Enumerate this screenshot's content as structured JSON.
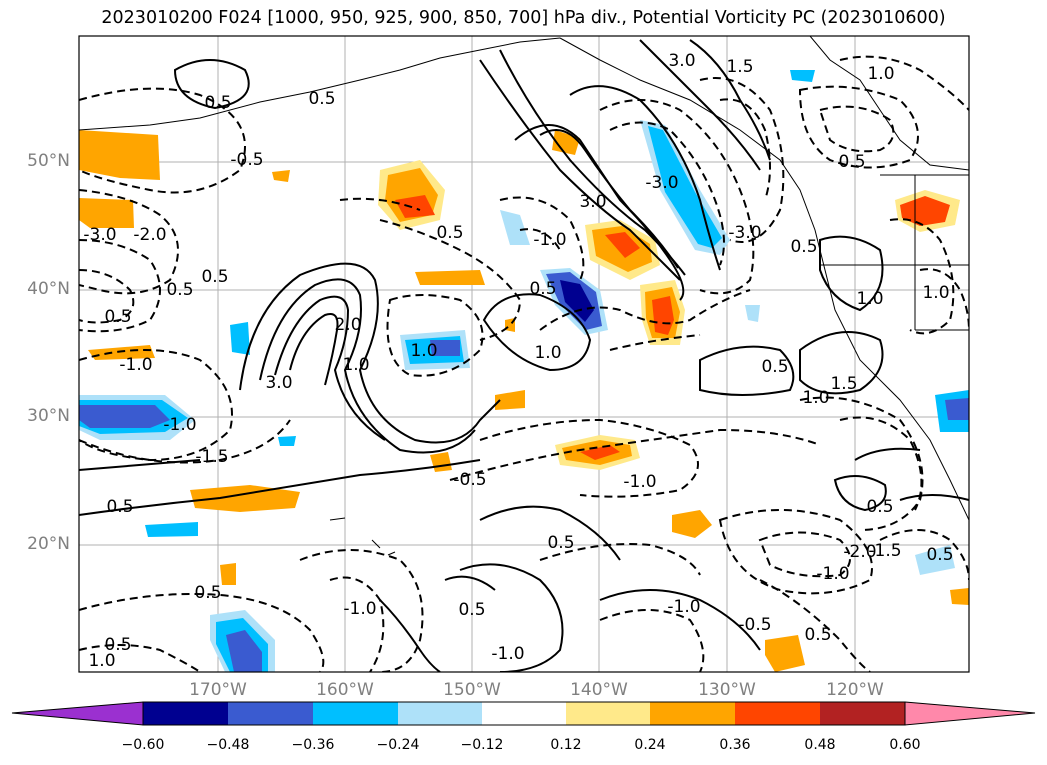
{
  "title": "2023010200 F024 [1000, 950, 925, 900, 850, 700] hPa div., Potential Vorticity PC (2023010600)",
  "lat_labels": [
    "50°N",
    "40°N",
    "30°N",
    "20°N"
  ],
  "lon_labels": [
    "170°W",
    "160°W",
    "150°W",
    "140°W",
    "130°W",
    "120°W"
  ],
  "colorbar": {
    "ticks": [
      "−0.60",
      "−0.48",
      "−0.36",
      "−0.24",
      "−0.12",
      "0.12",
      "0.24",
      "0.36",
      "0.48",
      "0.60"
    ],
    "colors": [
      "#9b30d0",
      "#000090",
      "#3a5bd0",
      "#00bfff",
      "#aee1f9",
      "#ffffff",
      "#ffe98a",
      "#ffa500",
      "#ff4500",
      "#b22222",
      "#ff88aa"
    ]
  },
  "contour_labels": [
    {
      "text": "0.5"
    },
    {
      "text": "-0.5"
    },
    {
      "text": "1.0"
    },
    {
      "text": "-1.0"
    },
    {
      "text": "1.5"
    },
    {
      "text": "-1.5"
    },
    {
      "text": "2.0"
    },
    {
      "text": "-2.0"
    },
    {
      "text": "3.0"
    },
    {
      "text": "-3.0"
    }
  ]
}
